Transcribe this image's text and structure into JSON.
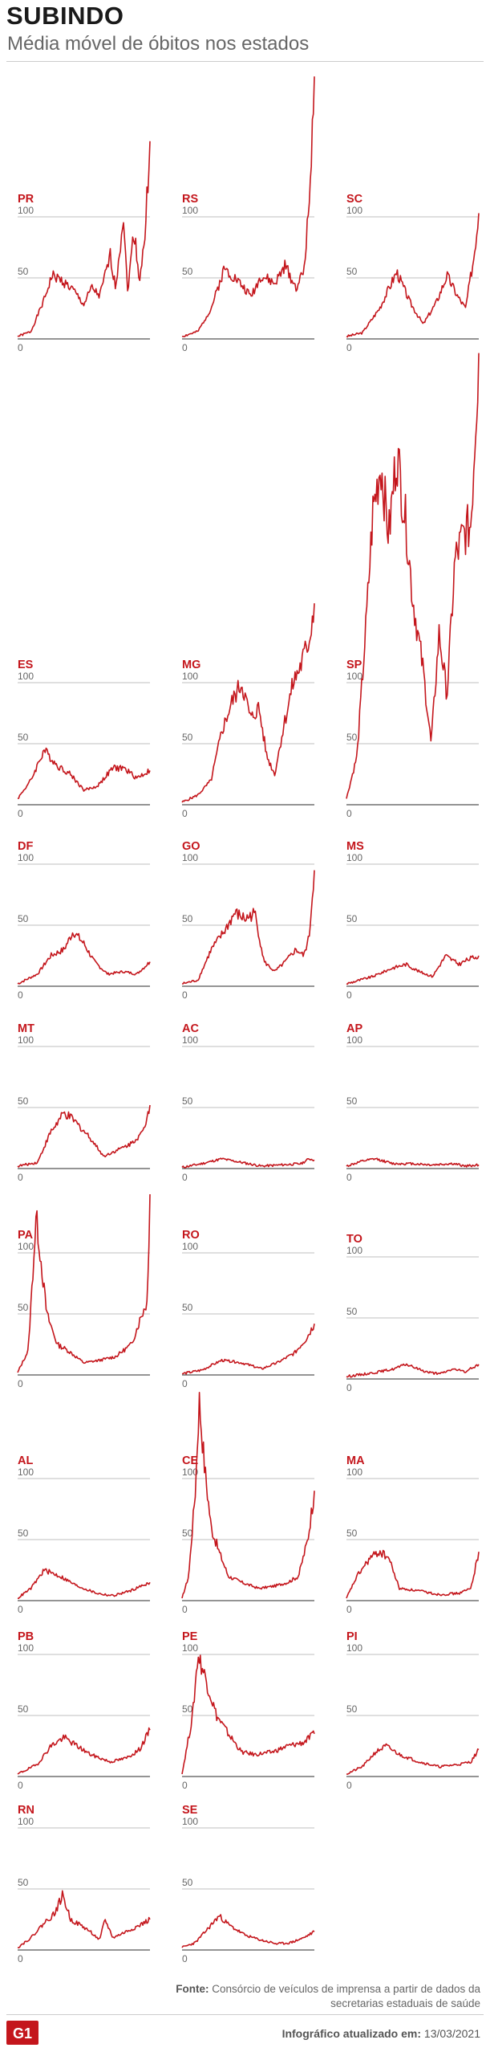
{
  "header": {
    "title": "SUBINDO",
    "subtitle": "Média móvel de óbitos nos estados"
  },
  "footer": {
    "source_label": "Fonte:",
    "source_text": "Consórcio de veículos de imprensa a partir de dados da secretarias estaduais de saúde",
    "updated_label": "Infográfico atualizado em:",
    "updated_date": "13/03/2021",
    "logo_text": "G1"
  },
  "colors": {
    "line": "#c4161c",
    "label": "#c4161c",
    "grid": "#aaaaaa",
    "axis": "#555555",
    "tick": "#666666"
  },
  "chart_data": [
    {
      "type": "line",
      "state": "PR",
      "ticks": [
        0,
        50,
        100
      ],
      "peak": 165,
      "shape": [
        [
          0,
          2
        ],
        [
          0.1,
          6
        ],
        [
          0.2,
          32
        ],
        [
          0.26,
          52
        ],
        [
          0.33,
          48
        ],
        [
          0.42,
          40
        ],
        [
          0.5,
          28
        ],
        [
          0.56,
          42
        ],
        [
          0.62,
          35
        ],
        [
          0.7,
          68
        ],
        [
          0.74,
          42
        ],
        [
          0.8,
          102
        ],
        [
          0.83,
          38
        ],
        [
          0.88,
          90
        ],
        [
          0.92,
          48
        ],
        [
          0.96,
          80
        ],
        [
          1,
          162
        ]
      ]
    },
    {
      "type": "line",
      "state": "RS",
      "ticks": [
        0,
        50,
        100
      ],
      "peak": 218,
      "shape": [
        [
          0,
          2
        ],
        [
          0.12,
          6
        ],
        [
          0.22,
          25
        ],
        [
          0.32,
          58
        ],
        [
          0.42,
          48
        ],
        [
          0.52,
          35
        ],
        [
          0.6,
          52
        ],
        [
          0.7,
          45
        ],
        [
          0.78,
          60
        ],
        [
          0.86,
          42
        ],
        [
          0.92,
          55
        ],
        [
          0.96,
          110
        ],
        [
          1,
          215
        ]
      ]
    },
    {
      "type": "line",
      "state": "SC",
      "ticks": [
        0,
        50,
        100
      ],
      "peak": 105,
      "shape": [
        [
          0,
          2
        ],
        [
          0.12,
          5
        ],
        [
          0.25,
          25
        ],
        [
          0.38,
          55
        ],
        [
          0.48,
          30
        ],
        [
          0.58,
          12
        ],
        [
          0.68,
          30
        ],
        [
          0.76,
          52
        ],
        [
          0.84,
          35
        ],
        [
          0.9,
          25
        ],
        [
          0.96,
          65
        ],
        [
          1,
          103
        ]
      ]
    },
    {
      "type": "line",
      "state": "ES",
      "ticks": [
        0,
        50,
        100
      ],
      "peak": 45,
      "shape": [
        [
          0,
          5
        ],
        [
          0.1,
          20
        ],
        [
          0.2,
          45
        ],
        [
          0.3,
          32
        ],
        [
          0.4,
          25
        ],
        [
          0.5,
          12
        ],
        [
          0.6,
          15
        ],
        [
          0.72,
          30
        ],
        [
          0.8,
          30
        ],
        [
          0.9,
          22
        ],
        [
          1,
          28
        ]
      ]
    },
    {
      "type": "line",
      "state": "MG",
      "ticks": [
        0,
        50,
        100
      ],
      "peak": 165,
      "shape": [
        [
          0,
          2
        ],
        [
          0.12,
          8
        ],
        [
          0.22,
          20
        ],
        [
          0.3,
          60
        ],
        [
          0.38,
          85
        ],
        [
          0.45,
          100
        ],
        [
          0.52,
          70
        ],
        [
          0.58,
          80
        ],
        [
          0.64,
          40
        ],
        [
          0.7,
          25
        ],
        [
          0.76,
          60
        ],
        [
          0.84,
          100
        ],
        [
          0.9,
          115
        ],
        [
          0.96,
          135
        ],
        [
          1,
          165
        ]
      ]
    },
    {
      "type": "line",
      "state": "SP",
      "ticks": [
        0,
        50,
        100
      ],
      "peak": 370,
      "shape": [
        [
          0,
          5
        ],
        [
          0.08,
          40
        ],
        [
          0.15,
          150
        ],
        [
          0.2,
          240
        ],
        [
          0.26,
          280
        ],
        [
          0.32,
          220
        ],
        [
          0.38,
          290
        ],
        [
          0.45,
          230
        ],
        [
          0.5,
          170
        ],
        [
          0.58,
          110
        ],
        [
          0.64,
          50
        ],
        [
          0.7,
          140
        ],
        [
          0.76,
          90
        ],
        [
          0.82,
          200
        ],
        [
          0.88,
          220
        ],
        [
          0.94,
          230
        ],
        [
          1,
          370
        ]
      ]
    },
    {
      "type": "line",
      "state": "DF",
      "ticks": [
        0,
        50,
        100
      ],
      "peak": 45,
      "shape": [
        [
          0,
          2
        ],
        [
          0.15,
          10
        ],
        [
          0.25,
          25
        ],
        [
          0.35,
          30
        ],
        [
          0.42,
          45
        ],
        [
          0.5,
          35
        ],
        [
          0.58,
          20
        ],
        [
          0.68,
          10
        ],
        [
          0.8,
          12
        ],
        [
          0.9,
          10
        ],
        [
          1,
          20
        ]
      ]
    },
    {
      "type": "line",
      "state": "GO",
      "ticks": [
        0,
        50,
        100
      ],
      "peak": 95,
      "shape": [
        [
          0,
          2
        ],
        [
          0.12,
          5
        ],
        [
          0.22,
          30
        ],
        [
          0.32,
          45
        ],
        [
          0.4,
          60
        ],
        [
          0.48,
          55
        ],
        [
          0.55,
          60
        ],
        [
          0.62,
          20
        ],
        [
          0.7,
          12
        ],
        [
          0.78,
          20
        ],
        [
          0.86,
          30
        ],
        [
          0.92,
          25
        ],
        [
          0.96,
          40
        ],
        [
          1,
          95
        ]
      ]
    },
    {
      "type": "line",
      "state": "MS",
      "ticks": [
        0,
        50,
        100
      ],
      "peak": 30,
      "shape": [
        [
          0,
          2
        ],
        [
          0.2,
          8
        ],
        [
          0.35,
          15
        ],
        [
          0.45,
          18
        ],
        [
          0.55,
          12
        ],
        [
          0.65,
          8
        ],
        [
          0.75,
          25
        ],
        [
          0.85,
          18
        ],
        [
          0.92,
          22
        ],
        [
          1,
          25
        ]
      ]
    },
    {
      "type": "line",
      "state": "MT",
      "ticks": [
        0,
        50,
        100
      ],
      "peak": 52,
      "shape": [
        [
          0,
          2
        ],
        [
          0.15,
          5
        ],
        [
          0.25,
          30
        ],
        [
          0.35,
          45
        ],
        [
          0.42,
          40
        ],
        [
          0.55,
          25
        ],
        [
          0.65,
          10
        ],
        [
          0.75,
          15
        ],
        [
          0.85,
          20
        ],
        [
          0.95,
          30
        ],
        [
          1,
          52
        ]
      ]
    },
    {
      "type": "line",
      "state": "AC",
      "ticks": [
        0,
        50,
        100
      ],
      "peak": 10,
      "shape": [
        [
          0,
          1
        ],
        [
          0.15,
          4
        ],
        [
          0.3,
          8
        ],
        [
          0.45,
          5
        ],
        [
          0.6,
          2
        ],
        [
          0.75,
          3
        ],
        [
          0.9,
          4
        ],
        [
          0.96,
          8
        ],
        [
          1,
          7
        ]
      ]
    },
    {
      "type": "line",
      "state": "AP",
      "ticks": [
        0,
        50,
        100
      ],
      "peak": 10,
      "shape": [
        [
          0,
          2
        ],
        [
          0.12,
          6
        ],
        [
          0.22,
          8
        ],
        [
          0.35,
          4
        ],
        [
          0.5,
          4
        ],
        [
          0.65,
          3
        ],
        [
          0.8,
          4
        ],
        [
          0.9,
          2
        ],
        [
          1,
          3
        ]
      ]
    },
    {
      "type": "line",
      "state": "PA",
      "ticks": [
        0,
        50,
        100
      ],
      "peak": 148,
      "shape": [
        [
          0,
          2
        ],
        [
          0.08,
          20
        ],
        [
          0.14,
          130
        ],
        [
          0.18,
          90
        ],
        [
          0.22,
          50
        ],
        [
          0.3,
          25
        ],
        [
          0.38,
          20
        ],
        [
          0.5,
          10
        ],
        [
          0.62,
          12
        ],
        [
          0.74,
          15
        ],
        [
          0.86,
          25
        ],
        [
          0.94,
          50
        ],
        [
          0.98,
          60
        ],
        [
          1,
          148
        ]
      ]
    },
    {
      "type": "line",
      "state": "RO",
      "ticks": [
        0,
        50,
        100
      ],
      "peak": 42,
      "shape": [
        [
          0,
          1
        ],
        [
          0.15,
          4
        ],
        [
          0.3,
          12
        ],
        [
          0.45,
          10
        ],
        [
          0.6,
          5
        ],
        [
          0.72,
          10
        ],
        [
          0.85,
          18
        ],
        [
          0.94,
          30
        ],
        [
          1,
          42
        ]
      ]
    },
    {
      "type": "line",
      "state": "TO",
      "ticks": [
        0,
        50,
        100
      ],
      "peak": 12,
      "shape": [
        [
          0,
          2
        ],
        [
          0.2,
          5
        ],
        [
          0.35,
          8
        ],
        [
          0.45,
          12
        ],
        [
          0.6,
          6
        ],
        [
          0.7,
          4
        ],
        [
          0.8,
          8
        ],
        [
          0.9,
          6
        ],
        [
          1,
          12
        ]
      ]
    },
    {
      "type": "line",
      "state": "AL",
      "ticks": [
        0,
        50,
        100
      ],
      "peak": 25,
      "shape": [
        [
          0,
          2
        ],
        [
          0.1,
          10
        ],
        [
          0.2,
          25
        ],
        [
          0.32,
          20
        ],
        [
          0.45,
          12
        ],
        [
          0.6,
          6
        ],
        [
          0.72,
          4
        ],
        [
          0.85,
          8
        ],
        [
          1,
          15
        ]
      ]
    },
    {
      "type": "line",
      "state": "CE",
      "ticks": [
        0,
        50,
        100
      ],
      "peak": 165,
      "shape": [
        [
          0,
          2
        ],
        [
          0.05,
          20
        ],
        [
          0.1,
          90
        ],
        [
          0.13,
          165
        ],
        [
          0.17,
          110
        ],
        [
          0.22,
          60
        ],
        [
          0.28,
          40
        ],
        [
          0.35,
          20
        ],
        [
          0.45,
          15
        ],
        [
          0.58,
          10
        ],
        [
          0.7,
          12
        ],
        [
          0.8,
          15
        ],
        [
          0.88,
          20
        ],
        [
          0.95,
          50
        ],
        [
          1,
          90
        ]
      ]
    },
    {
      "type": "line",
      "state": "MA",
      "ticks": [
        0,
        50,
        100
      ],
      "peak": 45,
      "shape": [
        [
          0,
          2
        ],
        [
          0.08,
          20
        ],
        [
          0.18,
          35
        ],
        [
          0.25,
          40
        ],
        [
          0.32,
          35
        ],
        [
          0.4,
          10
        ],
        [
          0.55,
          8
        ],
        [
          0.7,
          5
        ],
        [
          0.85,
          6
        ],
        [
          0.94,
          10
        ],
        [
          1,
          40
        ]
      ]
    },
    {
      "type": "line",
      "state": "PB",
      "ticks": [
        0,
        50,
        100
      ],
      "peak": 38,
      "shape": [
        [
          0,
          2
        ],
        [
          0.15,
          10
        ],
        [
          0.25,
          25
        ],
        [
          0.35,
          32
        ],
        [
          0.45,
          25
        ],
        [
          0.55,
          18
        ],
        [
          0.7,
          12
        ],
        [
          0.82,
          15
        ],
        [
          0.92,
          22
        ],
        [
          1,
          38
        ]
      ]
    },
    {
      "type": "line",
      "state": "PE",
      "ticks": [
        0,
        50,
        100
      ],
      "peak": 100,
      "shape": [
        [
          0,
          2
        ],
        [
          0.08,
          50
        ],
        [
          0.12,
          100
        ],
        [
          0.18,
          80
        ],
        [
          0.26,
          50
        ],
        [
          0.35,
          35
        ],
        [
          0.45,
          20
        ],
        [
          0.55,
          18
        ],
        [
          0.68,
          20
        ],
        [
          0.8,
          25
        ],
        [
          0.92,
          28
        ],
        [
          1,
          35
        ]
      ]
    },
    {
      "type": "line",
      "state": "PI",
      "ticks": [
        0,
        50,
        100
      ],
      "peak": 25,
      "shape": [
        [
          0,
          2
        ],
        [
          0.12,
          8
        ],
        [
          0.22,
          20
        ],
        [
          0.3,
          25
        ],
        [
          0.4,
          18
        ],
        [
          0.55,
          12
        ],
        [
          0.7,
          8
        ],
        [
          0.85,
          10
        ],
        [
          0.94,
          12
        ],
        [
          1,
          22
        ]
      ]
    },
    {
      "type": "line",
      "state": "RN",
      "ticks": [
        0,
        50,
        100
      ],
      "peak": 45,
      "shape": [
        [
          0,
          2
        ],
        [
          0.1,
          10
        ],
        [
          0.2,
          22
        ],
        [
          0.28,
          30
        ],
        [
          0.34,
          45
        ],
        [
          0.4,
          25
        ],
        [
          0.48,
          20
        ],
        [
          0.55,
          15
        ],
        [
          0.62,
          8
        ],
        [
          0.66,
          25
        ],
        [
          0.72,
          10
        ],
        [
          0.82,
          15
        ],
        [
          0.92,
          20
        ],
        [
          1,
          25
        ]
      ]
    },
    {
      "type": "line",
      "state": "SE",
      "ticks": [
        0,
        50,
        100
      ],
      "peak": 30,
      "shape": [
        [
          0,
          2
        ],
        [
          0.1,
          6
        ],
        [
          0.2,
          18
        ],
        [
          0.28,
          28
        ],
        [
          0.36,
          20
        ],
        [
          0.48,
          12
        ],
        [
          0.6,
          8
        ],
        [
          0.72,
          5
        ],
        [
          0.82,
          6
        ],
        [
          0.92,
          10
        ],
        [
          1,
          15
        ]
      ]
    }
  ]
}
